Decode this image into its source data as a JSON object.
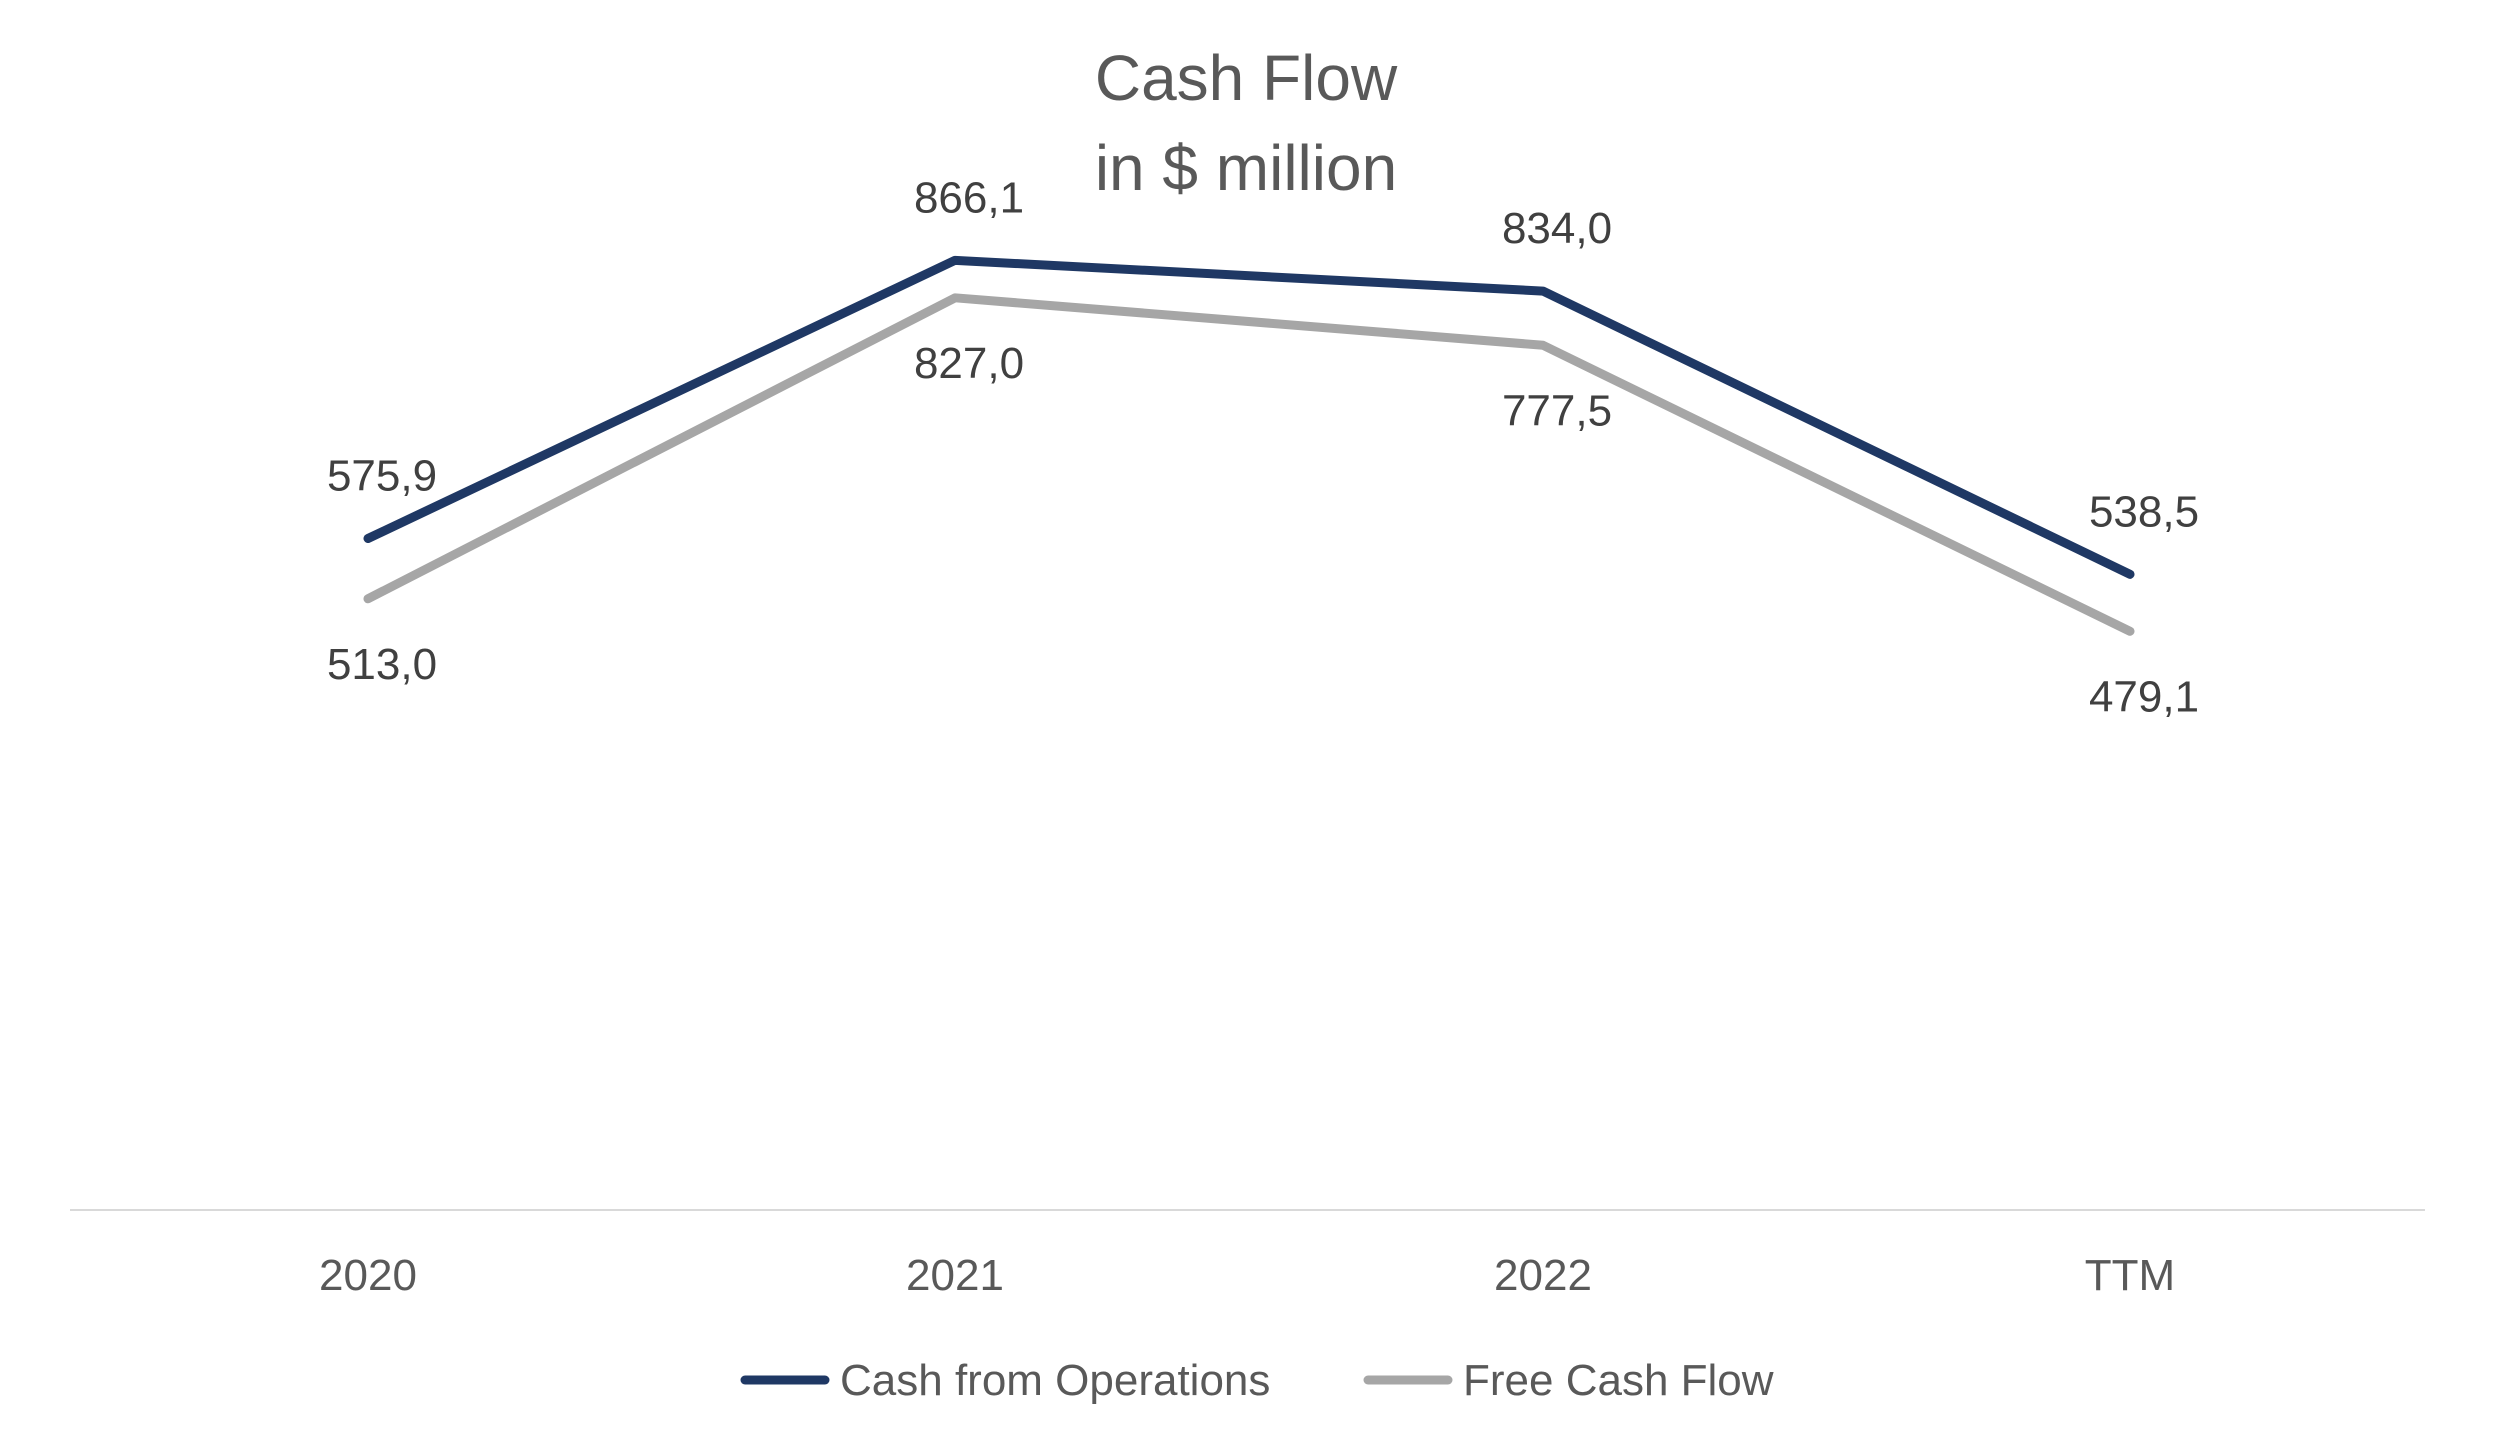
{
  "chart_data": {
    "type": "line",
    "title": "Cash Flow",
    "subtitle": "in $ million",
    "categories": [
      "2020",
      "2021",
      "2022",
      "TTM"
    ],
    "series": [
      {
        "name": "Cash from Operations",
        "values": [
          575.9,
          866.1,
          834.0,
          538.5
        ],
        "labels": [
          "575,9",
          "866,1",
          "834,0",
          "538,5"
        ],
        "label_position": "above",
        "color": "#1f3864"
      },
      {
        "name": "Free Cash Flow",
        "values": [
          513.0,
          827.0,
          777.5,
          479.1
        ],
        "labels": [
          "513,0",
          "827,0",
          "777,5",
          "479,1"
        ],
        "label_position": "below",
        "color": "#a6a6a6"
      }
    ],
    "axis_color": "#d9d9d9",
    "gridlines": false,
    "y_axis_visible": false,
    "legend_position": "bottom"
  }
}
